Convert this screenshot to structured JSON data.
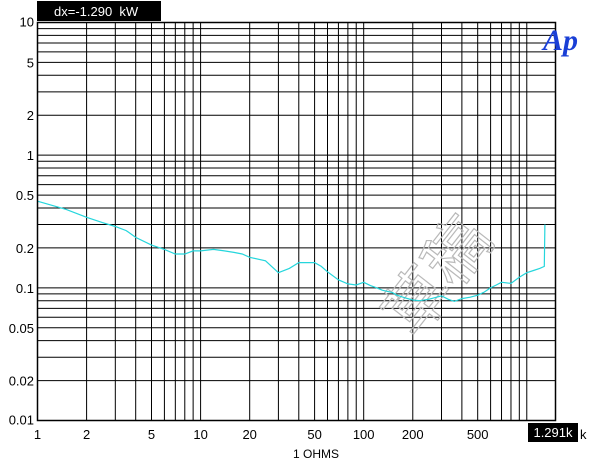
{
  "header": {
    "readout": "dx=-1.290  kW"
  },
  "logo": {
    "text": "Ap"
  },
  "watermark": {
    "text": "草稿"
  },
  "cursor": {
    "label": "1.291k"
  },
  "colors": {
    "trace": "#25d6dc",
    "grid": "#000000",
    "background": "#ffffff",
    "logo": "#1a3fd6",
    "readout_bg": "#000000"
  },
  "chart_data": {
    "type": "line",
    "title": "",
    "xlabel": "1 OHMS",
    "ylabel": "",
    "xscale": "log",
    "yscale": "log",
    "xlim": [
      1,
      1500
    ],
    "ylim": [
      0.01,
      10
    ],
    "grid": true,
    "x_tick_labels": [
      {
        "value": 1,
        "label": "1"
      },
      {
        "value": 2,
        "label": "2"
      },
      {
        "value": 5,
        "label": "5"
      },
      {
        "value": 10,
        "label": "10"
      },
      {
        "value": 20,
        "label": "20"
      },
      {
        "value": 50,
        "label": "50"
      },
      {
        "value": 100,
        "label": "100"
      },
      {
        "value": 200,
        "label": "200"
      },
      {
        "value": 500,
        "label": "500"
      },
      {
        "value": 1500,
        "label": "k"
      }
    ],
    "y_tick_labels": [
      {
        "value": 10,
        "label": "10"
      },
      {
        "value": 5,
        "label": "5"
      },
      {
        "value": 2,
        "label": "2"
      },
      {
        "value": 1,
        "label": "1"
      },
      {
        "value": 0.5,
        "label": "0.5"
      },
      {
        "value": 0.2,
        "label": "0.2"
      },
      {
        "value": 0.1,
        "label": "0.1"
      },
      {
        "value": 0.05,
        "label": "0.05"
      },
      {
        "value": 0.02,
        "label": "0.02"
      },
      {
        "value": 0.01,
        "label": "0.01"
      }
    ],
    "series": [
      {
        "x": [
          1,
          1.5,
          2,
          2.5,
          3,
          3.5,
          4,
          5,
          6,
          7,
          8,
          9,
          10,
          12,
          14,
          16,
          18,
          20,
          25,
          30,
          35,
          40,
          45,
          50,
          55,
          60,
          70,
          80,
          90,
          100,
          110,
          120,
          130,
          140,
          150,
          160,
          180,
          200,
          220,
          250,
          280,
          300,
          330,
          360,
          400,
          450,
          500,
          550,
          600,
          650,
          700,
          800,
          900,
          1000,
          1100,
          1200,
          1280,
          1291
        ],
        "y": [
          0.45,
          0.39,
          0.34,
          0.31,
          0.29,
          0.27,
          0.24,
          0.21,
          0.195,
          0.18,
          0.18,
          0.19,
          0.19,
          0.195,
          0.19,
          0.185,
          0.18,
          0.17,
          0.16,
          0.13,
          0.14,
          0.155,
          0.155,
          0.155,
          0.145,
          0.132,
          0.115,
          0.107,
          0.105,
          0.11,
          0.104,
          0.1,
          0.096,
          0.094,
          0.092,
          0.088,
          0.084,
          0.081,
          0.08,
          0.082,
          0.085,
          0.087,
          0.082,
          0.079,
          0.083,
          0.085,
          0.088,
          0.093,
          0.1,
          0.105,
          0.11,
          0.108,
          0.12,
          0.13,
          0.135,
          0.14,
          0.145,
          0.3
        ]
      }
    ]
  }
}
